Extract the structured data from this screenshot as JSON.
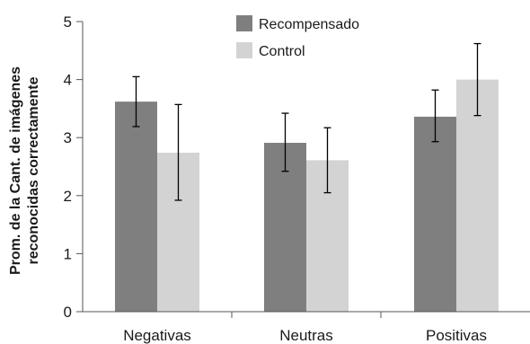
{
  "chart_data": {
    "type": "bar",
    "ylabel_lines": [
      "Prom. de la Cant. de imágenes",
      "reconocidas correctamente"
    ],
    "categories": [
      "Negativas",
      "Neutras",
      "Positivas"
    ],
    "ylim": [
      0,
      5
    ],
    "yticks": [
      "0",
      "1",
      "2",
      "3",
      "4",
      "5"
    ],
    "legend_position": "top-center",
    "grid": false,
    "series": [
      {
        "name": "Recompensado",
        "color": "#7f7f7f",
        "values": [
          3.62,
          2.91,
          3.36
        ],
        "error_low": [
          3.19,
          2.42,
          2.93
        ],
        "error_high": [
          4.05,
          3.42,
          3.82
        ]
      },
      {
        "name": "Control",
        "color": "#d3d3d3",
        "values": [
          2.74,
          2.61,
          4.0
        ],
        "error_low": [
          1.92,
          2.05,
          3.38
        ],
        "error_high": [
          3.57,
          3.17,
          4.62
        ]
      }
    ]
  }
}
